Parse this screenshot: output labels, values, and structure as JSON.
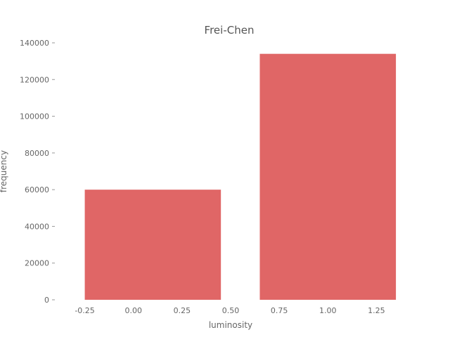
{
  "chart_data": {
    "type": "bar",
    "title": "Frei-Chen",
    "xlabel": "luminosity",
    "ylabel": "frequency",
    "bar_color": "#e06666",
    "xlim": [
      -0.375,
      1.375
    ],
    "ylim": [
      0,
      140000
    ],
    "bars": [
      {
        "x_start": -0.25,
        "x_end": 0.45,
        "value": 60000
      },
      {
        "x_start": 0.65,
        "x_end": 1.35,
        "value": 134000
      }
    ],
    "x_ticks": [
      {
        "value": -0.25,
        "label": "-0.25"
      },
      {
        "value": 0.0,
        "label": "0.00"
      },
      {
        "value": 0.25,
        "label": "0.25"
      },
      {
        "value": 0.5,
        "label": "0.50"
      },
      {
        "value": 0.75,
        "label": "0.75"
      },
      {
        "value": 1.0,
        "label": "1.00"
      },
      {
        "value": 1.25,
        "label": "1.25"
      }
    ],
    "y_ticks": [
      {
        "value": 0,
        "label": "0"
      },
      {
        "value": 20000,
        "label": "20000"
      },
      {
        "value": 40000,
        "label": "40000"
      },
      {
        "value": 60000,
        "label": "60000"
      },
      {
        "value": 80000,
        "label": "80000"
      },
      {
        "value": 100000,
        "label": "100000"
      },
      {
        "value": 120000,
        "label": "120000"
      },
      {
        "value": 140000,
        "label": "140000"
      }
    ],
    "grid": false,
    "legend": "none"
  }
}
